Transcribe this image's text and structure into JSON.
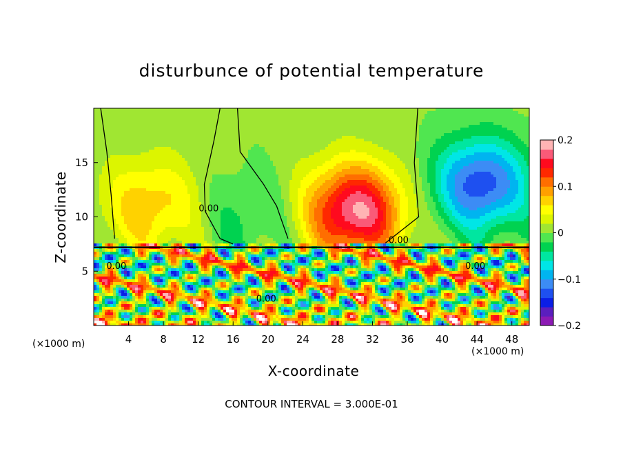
{
  "chart_data": {
    "type": "heatmap",
    "title": "disturbunce of potential temperature",
    "xlabel": "X-coordinate",
    "ylabel": "Z-coordinate",
    "x_unit_label": "(×1000 m)",
    "y_unit_label": "(×1000 m)",
    "xlim": [
      0,
      50
    ],
    "ylim": [
      0,
      20
    ],
    "x_ticks": [
      4,
      8,
      12,
      16,
      20,
      24,
      28,
      32,
      36,
      40,
      44,
      48
    ],
    "y_ticks": [
      5,
      10,
      15
    ],
    "colorbar": {
      "min": -0.2,
      "max": 0.2,
      "tick_values": [
        0.2,
        0.1,
        0,
        -0.1,
        -0.2
      ],
      "tick_labels": [
        "0.2",
        "0.1",
        "0",
        "−0.1",
        "−0.2"
      ],
      "colors": [
        "#8c1ab4",
        "#5a1ebe",
        "#0a1ee6",
        "#1e50f0",
        "#3c8cf5",
        "#00b4f0",
        "#00e6e6",
        "#00e6a0",
        "#00d250",
        "#50e650",
        "#a0e632",
        "#dcf500",
        "#ffff00",
        "#ffd200",
        "#ffa000",
        "#ff6e00",
        "#ff2800",
        "#ff0a1e",
        "#fa5a78",
        "#ffb4b4"
      ]
    },
    "contour_interval_text": "CONTOUR INTERVAL = 3.000E-01",
    "contour_labels": [
      {
        "text": "0.00",
        "x": 13.2,
        "z": 10.5
      },
      {
        "text": "0.00",
        "x": 35.0,
        "z": 7.6
      },
      {
        "text": "0.00",
        "x": 2.6,
        "z": 5.2
      },
      {
        "text": "0.00",
        "x": 19.8,
        "z": 2.2
      },
      {
        "text": "0.00",
        "x": 43.8,
        "z": 5.2
      }
    ],
    "warm_anomalies": [
      {
        "x": 6.5,
        "z": 11,
        "amp": 0.07
      },
      {
        "x": 30,
        "z": 10.5,
        "amp": 0.18
      }
    ],
    "cold_anomalies": [
      {
        "x": 44.5,
        "z": 13,
        "amp": -0.14
      },
      {
        "x": 17.5,
        "z": 10,
        "amp": -0.03
      }
    ],
    "inversion_layer_height": 7.2
  }
}
